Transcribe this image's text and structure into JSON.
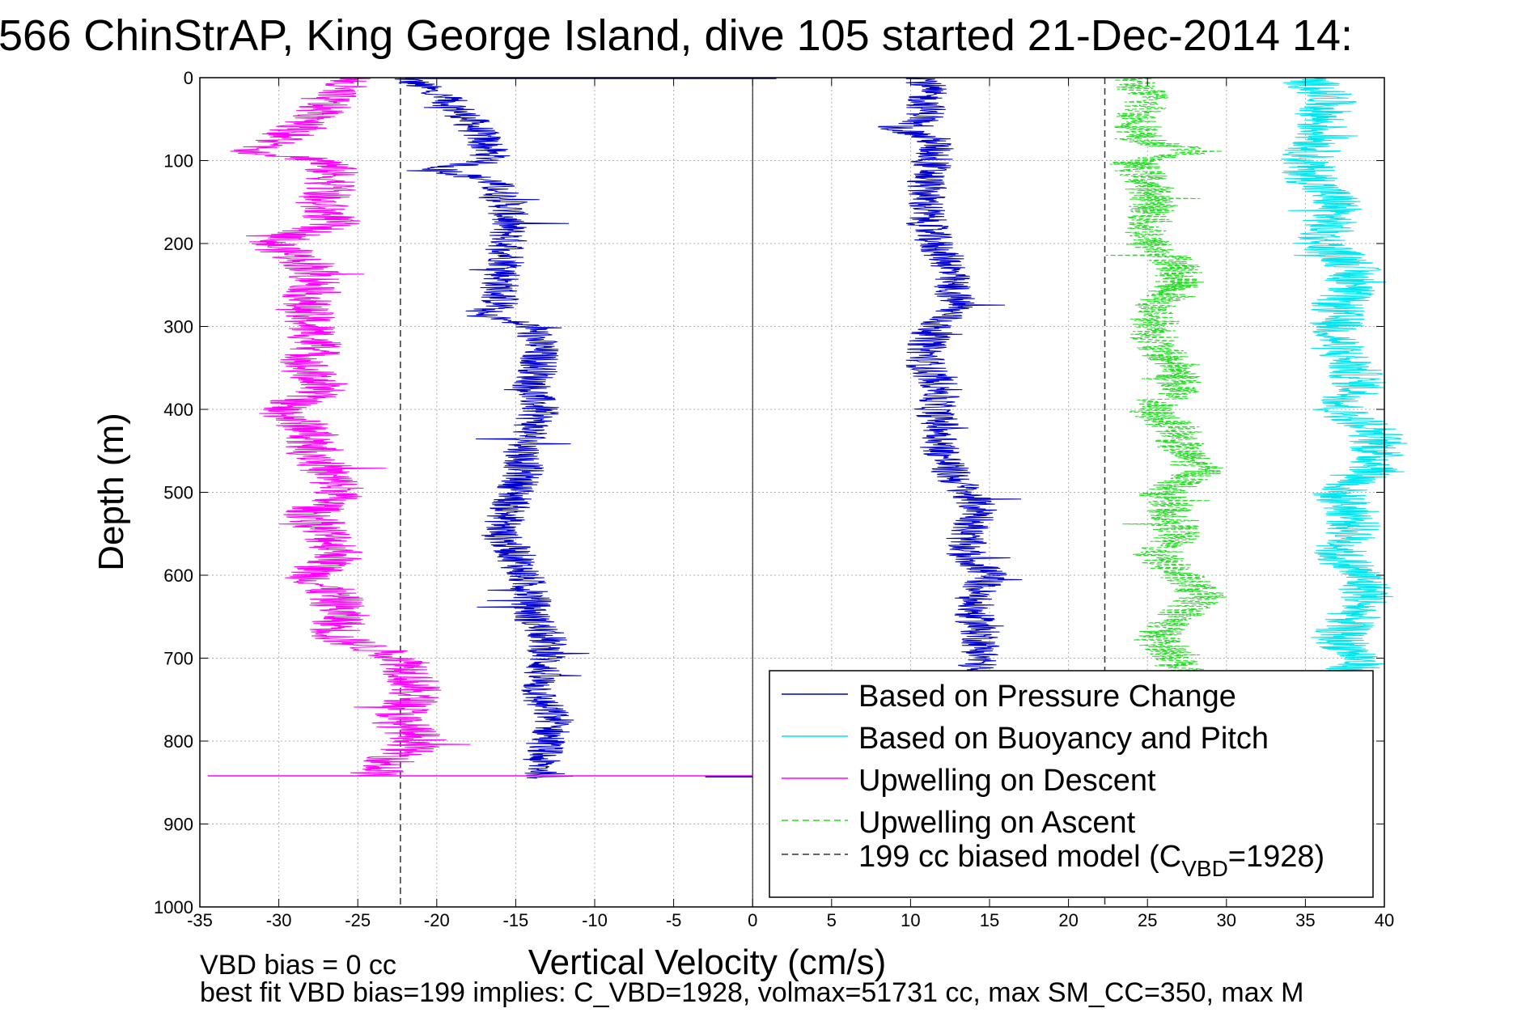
{
  "figure": {
    "title": "566 ChinStrAP, King George Island, dive 105 started 21-Dec-2014 14:",
    "footer_line1": "VBD bias = 0 cc",
    "footer_line2": "best fit VBD bias=199 implies: C_VBD=1928, volmax=51731 cc, max SM_CC=350, max M"
  },
  "chart_data": {
    "type": "line",
    "xlabel": "Vertical Velocity (cm/s)",
    "ylabel": "Depth (m)",
    "xlim": [
      -35,
      40
    ],
    "ylim": [
      0,
      1000
    ],
    "y_reversed": true,
    "xticks": [
      -35,
      -30,
      -25,
      -20,
      -15,
      -10,
      -5,
      0,
      5,
      10,
      15,
      20,
      25,
      30,
      35,
      40
    ],
    "yticks": [
      0,
      100,
      200,
      300,
      400,
      500,
      600,
      700,
      800,
      900,
      1000
    ],
    "grid": true,
    "legend_position": "bottom-right",
    "colors": {
      "pressure": "#0000cc",
      "buoyancy": "#00e5ee",
      "upwelling_descent": "#ff00ff",
      "upwelling_ascent": "#22dd22",
      "model": "#333333"
    },
    "legend": [
      {
        "label": "Based on Pressure Change",
        "style": "solid",
        "color": "#0000cc"
      },
      {
        "label": "Based on Buoyancy and Pitch",
        "style": "solid",
        "color": "#00e5ee"
      },
      {
        "label": "Upwelling on Descent",
        "style": "solid",
        "color": "#ff00ff"
      },
      {
        "label": "Upwelling on Ascent",
        "style": "dashed",
        "color": "#22dd22"
      },
      {
        "label": "199 cc biased model (C",
        "sub": "VBD",
        "suffix": "=1928)",
        "style": "dashed",
        "color": "#333333"
      }
    ],
    "model_lines_x": [
      -22.3,
      22.3
    ],
    "series": [
      {
        "name": "Based on Pressure Change (descent)",
        "depth": [
          0,
          25,
          50,
          75,
          100,
          110,
          125,
          150,
          175,
          200,
          225,
          250,
          275,
          285,
          300,
          325,
          350,
          375,
          400,
          425,
          450,
          475,
          500,
          525,
          550,
          575,
          600,
          625,
          650,
          675,
          700,
          725,
          750,
          775,
          800,
          825,
          845
        ],
        "values": [
          -22,
          -19.5,
          -18,
          -17,
          -16.5,
          -20,
          -16.5,
          -15.5,
          -15.5,
          -15.5,
          -15.5,
          -16,
          -16,
          -17.5,
          -14,
          -13.5,
          -13.5,
          -14,
          -13.5,
          -14,
          -14.5,
          -14.5,
          -15,
          -15.5,
          -16,
          -15,
          -14.5,
          -14,
          -14,
          -13,
          -13,
          -13.5,
          -13.5,
          -12.5,
          -13,
          -13.5,
          -13
        ]
      },
      {
        "name": "Based on Pressure Change (ascent)",
        "depth": [
          0,
          25,
          50,
          60,
          75,
          100,
          125,
          150,
          175,
          200,
          225,
          250,
          275,
          300,
          325,
          350,
          375,
          400,
          425,
          450,
          475,
          500,
          525,
          550,
          575,
          600,
          625,
          650,
          675,
          700,
          715
        ],
        "values": [
          11,
          11,
          11,
          9,
          11.5,
          11.5,
          11,
          11,
          11,
          11.5,
          12.5,
          12.5,
          13,
          11.5,
          11,
          11,
          12,
          11.5,
          12,
          12,
          12.5,
          13.5,
          14.5,
          13.5,
          13.5,
          15,
          14,
          14,
          14.5,
          14.5,
          14
        ]
      },
      {
        "name": "Based on Buoyancy and Pitch",
        "depth": [
          0,
          25,
          50,
          75,
          100,
          125,
          150,
          175,
          200,
          225,
          250,
          275,
          300,
          325,
          350,
          375,
          400,
          425,
          450,
          475,
          500,
          525,
          550,
          575,
          600,
          625,
          650,
          675,
          700,
          715
        ],
        "values": [
          35,
          36.5,
          36,
          36,
          35,
          35.5,
          37,
          36.5,
          36,
          38,
          38,
          37,
          37,
          37,
          38,
          38.5,
          37,
          39.5,
          39.5,
          39.5,
          37,
          38,
          38,
          37,
          38.5,
          39,
          38,
          37,
          38.5,
          38
        ]
      },
      {
        "name": "Upwelling on Descent",
        "depth": [
          0,
          25,
          50,
          75,
          90,
          100,
          125,
          150,
          175,
          200,
          225,
          250,
          275,
          300,
          325,
          350,
          375,
          400,
          425,
          450,
          475,
          500,
          525,
          550,
          575,
          600,
          625,
          650,
          675,
          700,
          725,
          750,
          775,
          800,
          825,
          842
        ],
        "values": [
          -25.5,
          -27,
          -27.5,
          -30,
          -31.5,
          -27,
          -26.5,
          -27.5,
          -26.5,
          -30.5,
          -28,
          -27.5,
          -28.5,
          -28,
          -27.5,
          -28.5,
          -27,
          -30,
          -28,
          -27.5,
          -27,
          -26,
          -28,
          -27,
          -26,
          -28,
          -26.5,
          -26,
          -26.5,
          -22,
          -21.5,
          -21.5,
          -22.5,
          -21,
          -23,
          -24
        ]
      },
      {
        "name": "Upwelling on Ascent",
        "depth": [
          0,
          25,
          50,
          75,
          90,
          100,
          125,
          150,
          175,
          200,
          225,
          250,
          275,
          300,
          325,
          350,
          375,
          400,
          425,
          450,
          475,
          500,
          525,
          550,
          575,
          600,
          625,
          650,
          675,
          700,
          715
        ],
        "values": [
          24,
          25,
          24.5,
          24.5,
          28.5,
          24,
          25,
          25.5,
          25,
          25,
          27,
          27,
          25.5,
          25.5,
          25.5,
          27,
          27,
          25,
          27,
          27,
          28.5,
          26,
          26.5,
          27,
          25.5,
          27,
          28.5,
          27,
          25.5,
          27,
          27
        ]
      }
    ]
  }
}
